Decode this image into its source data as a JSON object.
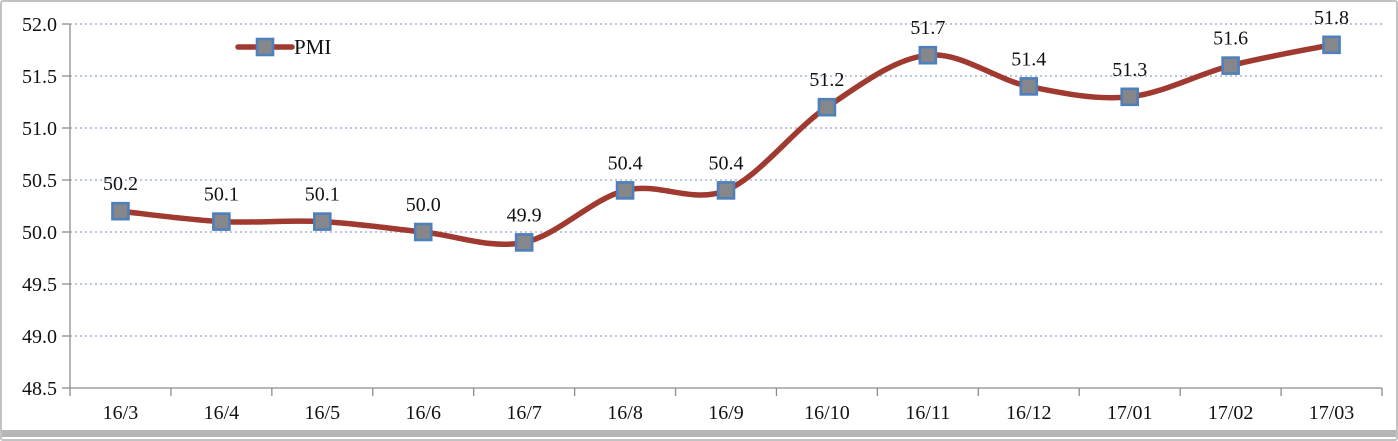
{
  "chart_data": {
    "type": "line",
    "title": "",
    "xlabel": "",
    "ylabel": "",
    "categories": [
      "16/3",
      "16/4",
      "16/5",
      "16/6",
      "16/7",
      "16/8",
      "16/9",
      "16/10",
      "16/11",
      "16/12",
      "17/01",
      "17/02",
      "17/03"
    ],
    "series": [
      {
        "name": "PMI",
        "values": [
          50.2,
          50.1,
          50.1,
          50.0,
          49.9,
          50.4,
          50.4,
          51.2,
          51.7,
          51.4,
          51.3,
          51.6,
          51.8
        ],
        "data_labels": [
          "50.2",
          "50.1",
          "50.1",
          "50.0",
          "49.9",
          "50.4",
          "50.4",
          "51.2",
          "51.7",
          "51.4",
          "51.3",
          "51.6",
          "51.8"
        ]
      }
    ],
    "ylim": [
      48.5,
      52.0
    ],
    "ytick_step": 0.5,
    "ytick_labels": [
      "48.5",
      "49.0",
      "49.5",
      "50.0",
      "50.5",
      "51.0",
      "51.5",
      "52.0"
    ],
    "grid": "horizontal-dotted",
    "smoothed": true,
    "legend": {
      "label": "PMI",
      "position": "inside-top-left"
    },
    "colors": {
      "line": "#a03a31",
      "marker_fill": "#85878a",
      "marker_border": "#4e80bc",
      "gridline": "#b9c7dc",
      "axis": "#8c8c8c",
      "text": "#111111",
      "frame_border": "#c2c2c2",
      "bottom_bar": "#b6b6b6"
    }
  }
}
